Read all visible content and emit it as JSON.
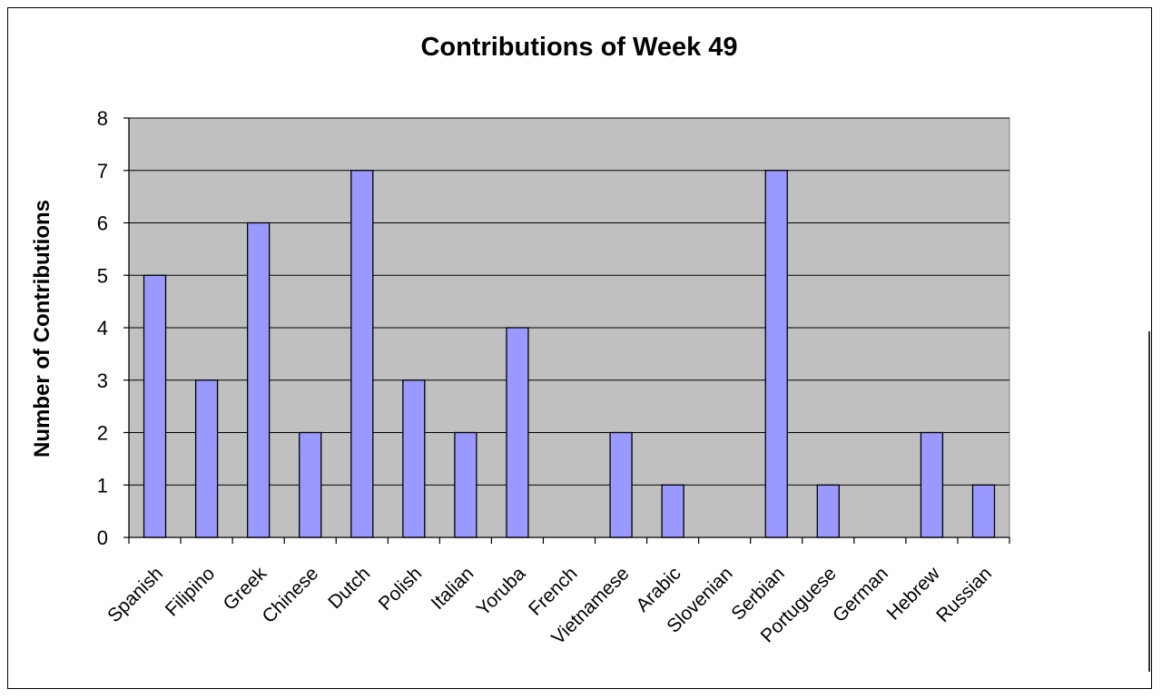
{
  "chart_data": {
    "type": "bar",
    "title": "Contributions of Week 49",
    "xlabel": "",
    "ylabel": "Number of Contributions",
    "categories": [
      "Spanish",
      "Filipino",
      "Greek",
      "Chinese",
      "Dutch",
      "Polish",
      "Italian",
      "Yoruba",
      "French",
      "Vietnamese",
      "Arabic",
      "Slovenian",
      "Serbian",
      "Portuguese",
      "German",
      "Hebrew",
      "Russian"
    ],
    "values": [
      5,
      3,
      6,
      2,
      7,
      3,
      2,
      4,
      0,
      2,
      1,
      0,
      7,
      1,
      0,
      2,
      1
    ],
    "ylim": [
      0,
      8
    ],
    "yticks": [
      "0",
      "1",
      "2",
      "3",
      "4",
      "5",
      "6",
      "7",
      "8"
    ],
    "grid": true,
    "legend": "none",
    "colors": {
      "plot_background": "#c0c0c0",
      "bar_fill": "#9999ff",
      "bar_stroke": "#000000",
      "gridline": "#000000"
    }
  }
}
